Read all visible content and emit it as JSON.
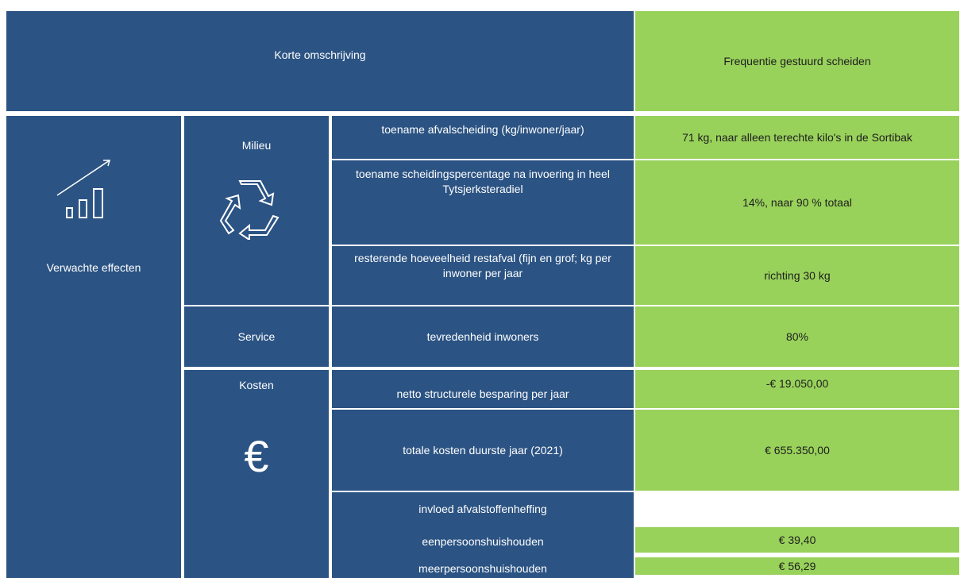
{
  "header": {
    "description": "Korte omschrijving",
    "measure": "Frequentie gestuurd scheiden"
  },
  "section": "Verwachte effecten",
  "groups": [
    {
      "name": "Milieu",
      "rows": [
        {
          "indicator": "toename afvalscheiding (kg/inwoner/jaar)",
          "value": "71 kg, naar alleen terechte kilo's in de Sortibak"
        },
        {
          "indicator": "toename scheidingspercentage na invoering in heel Tytsjerksteradiel",
          "value": "14%, naar 90 % totaal"
        },
        {
          "indicator": "resterende hoeveelheid restafval (fijn en grof; kg per inwoner per jaar",
          "value": "richting 30 kg"
        }
      ]
    },
    {
      "name": "Service",
      "rows": [
        {
          "indicator": "tevredenheid inwoners",
          "value": "80%"
        }
      ]
    },
    {
      "name": "Kosten",
      "icon": "€",
      "rows": [
        {
          "indicator": "netto structurele besparing per jaar",
          "value": "-€ 19.050,00"
        },
        {
          "indicator": "totale kosten duurste jaar (2021)",
          "value": "€ 655.350,00"
        },
        {
          "indicator": "invloed afvalstoffenheffing"
        },
        {
          "indicator": "eenpersoonshuishouden",
          "value": "€ 39,40"
        },
        {
          "indicator": "meerpersoonshuishouden",
          "value": "€ 56,29"
        }
      ]
    }
  ]
}
